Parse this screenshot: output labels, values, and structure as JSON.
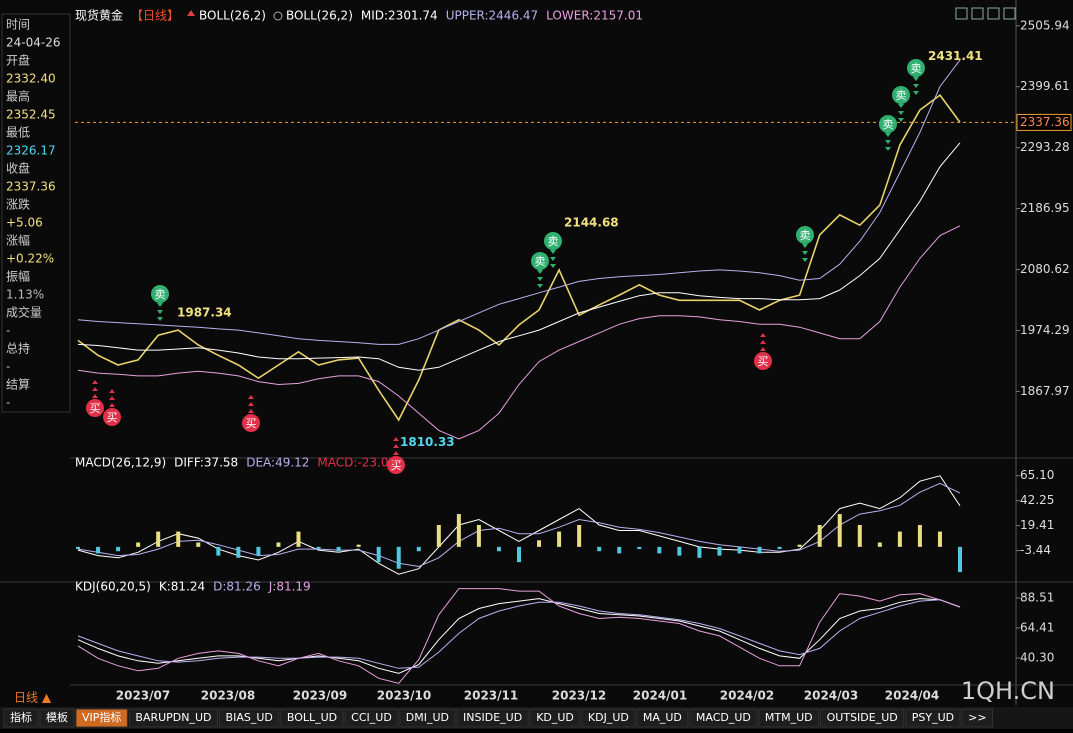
{
  "chart_data": [
    {
      "type": "line",
      "title": "现货黄金",
      "subtitle": "【日线】",
      "indicator": "BOLL(26,2)",
      "indicator_full": "BOLL(26,2)",
      "ylim": [
        1757,
        2537
      ],
      "yticks": [
        2505.94,
        2399.61,
        2293.28,
        2186.95,
        2080.62,
        1974.29,
        1867.97
      ],
      "xlabels": [
        "2023/07",
        "2023/08",
        "2023/09",
        "2023/10",
        "2023/11",
        "2023/12",
        "2024/01",
        "2024/02",
        "2024/03",
        "2024/04"
      ],
      "last_price": 2337.36,
      "last_price_color": "#f0a030",
      "annotations": [
        1987.34,
        2144.68,
        1810.33,
        2431.41
      ],
      "buy_label": "买",
      "sell_label": "卖",
      "series": [
        {
          "color": "#e8d36a",
          "values": [
            1957,
            1931,
            1914,
            1923,
            1966,
            1975,
            1949,
            1931,
            1914,
            1891,
            1914,
            1937,
            1914,
            1923,
            1926,
            1870,
            1818,
            1888,
            1975,
            1993,
            1975,
            1949,
            1984,
            2010,
            2080,
            2001,
            2019,
            2036,
            2054,
            2036,
            2027,
            2027,
            2027,
            2027,
            2010,
            2027,
            2036,
            2141,
            2176,
            2158,
            2193,
            2298,
            2359,
            2385,
            2337.36
          ]
        },
        {
          "name": "MID:2301.74",
          "color": "#ffffff",
          "values": [
            1950,
            1948,
            1944,
            1940,
            1940,
            1942,
            1944,
            1940,
            1935,
            1928,
            1925,
            1925,
            1926,
            1927,
            1928,
            1925,
            1910,
            1905,
            1910,
            1925,
            1940,
            1955,
            1965,
            1975,
            1990,
            2005,
            2015,
            2025,
            2035,
            2040,
            2040,
            2035,
            2032,
            2030,
            2030,
            2028,
            2028,
            2030,
            2045,
            2070,
            2100,
            2150,
            2200,
            2260,
            2301.74
          ]
        },
        {
          "name": "UPPER:2446.47",
          "color": "#b8b0f0",
          "values": [
            1993,
            1990,
            1988,
            1986,
            1984,
            1982,
            1980,
            1977,
            1975,
            1970,
            1965,
            1960,
            1957,
            1955,
            1953,
            1950,
            1950,
            1960,
            1975,
            1990,
            2005,
            2020,
            2030,
            2040,
            2050,
            2060,
            2065,
            2068,
            2070,
            2072,
            2075,
            2078,
            2080,
            2078,
            2075,
            2070,
            2062,
            2065,
            2090,
            2130,
            2180,
            2250,
            2320,
            2400,
            2446.47
          ]
        },
        {
          "name": "LOWER:2157.01",
          "color": "#e8a0e0",
          "values": [
            1905,
            1900,
            1898,
            1895,
            1895,
            1900,
            1903,
            1900,
            1895,
            1885,
            1880,
            1882,
            1890,
            1895,
            1895,
            1885,
            1860,
            1830,
            1800,
            1785,
            1800,
            1830,
            1880,
            1920,
            1940,
            1955,
            1970,
            1985,
            1995,
            2000,
            2000,
            1998,
            1993,
            1990,
            1985,
            1985,
            1980,
            1970,
            1960,
            1960,
            1990,
            2050,
            2100,
            2140,
            2157.01
          ]
        }
      ]
    },
    {
      "type": "combo",
      "title": "MACD(26,12,9)",
      "ylim": [
        -30.3,
        77.6
      ],
      "yticks": [
        {
          "value": 65.1,
          "label": "65.10"
        },
        42.25,
        19.41,
        -3.44
      ],
      "series": [
        {
          "name": "DIFF:37.58",
          "type": "line",
          "color": "#ffffff",
          "values": [
            -3,
            -8,
            -10,
            -5,
            5,
            12,
            8,
            -2,
            -8,
            -12,
            -5,
            5,
            -3,
            -5,
            -2,
            -15,
            -25,
            -20,
            0,
            20,
            25,
            15,
            5,
            15,
            25,
            35,
            20,
            15,
            15,
            10,
            5,
            0,
            -2,
            -3,
            -5,
            -5,
            -2,
            15,
            35,
            40,
            35,
            45,
            60,
            65,
            37.58
          ]
        },
        {
          "name": "DEA:49.12",
          "type": "line",
          "color": "#b8b0f0",
          "values": [
            -2,
            -5,
            -8,
            -7,
            -2,
            5,
            6,
            2,
            -3,
            -8,
            -7,
            -2,
            -2,
            -3,
            -3,
            -8,
            -15,
            -18,
            -10,
            5,
            15,
            17,
            12,
            12,
            18,
            25,
            22,
            18,
            16,
            13,
            9,
            5,
            2,
            0,
            -2,
            -4,
            -3,
            5,
            20,
            30,
            33,
            38,
            50,
            58,
            49.12
          ]
        },
        {
          "name": "MACD:-23.08",
          "type": "bar",
          "color": "#e0304a",
          "up_color": "#e8e080",
          "down_color": "#4fc8e0",
          "values": [
            -2,
            -6,
            -4,
            4,
            14,
            14,
            4,
            -8,
            -10,
            -8,
            4,
            14,
            -2,
            -4,
            2,
            -14,
            -20,
            -4,
            20,
            30,
            20,
            -4,
            -14,
            6,
            14,
            20,
            -4,
            -6,
            -2,
            -6,
            -8,
            -10,
            -8,
            -6,
            -6,
            -2,
            2,
            20,
            30,
            20,
            4,
            14,
            20,
            14,
            -23.08
          ]
        }
      ]
    },
    {
      "type": "combo",
      "title": "KDJ(60,20,5)",
      "ylim": [
        18.6,
        98.9
      ],
      "yticks": [
        88.51,
        64.41,
        {
          "value": 40.3,
          "label": "40.30"
        }
      ],
      "series": [
        {
          "name": "K:81.24",
          "type": "line",
          "color": "#ffffff",
          "values": [
            55,
            48,
            42,
            38,
            36,
            38,
            40,
            42,
            42,
            40,
            38,
            40,
            42,
            40,
            38,
            32,
            28,
            35,
            55,
            72,
            80,
            84,
            86,
            88,
            84,
            80,
            76,
            75,
            74,
            72,
            70,
            66,
            62,
            55,
            48,
            42,
            40,
            55,
            72,
            78,
            80,
            85,
            88,
            87,
            81.24
          ]
        },
        {
          "name": "D:81.26",
          "type": "line",
          "color": "#b8b0f0",
          "values": [
            58,
            52,
            46,
            42,
            38,
            37,
            38,
            40,
            41,
            41,
            40,
            40,
            41,
            41,
            40,
            36,
            32,
            33,
            45,
            60,
            72,
            78,
            82,
            85,
            85,
            82,
            78,
            76,
            75,
            73,
            71,
            68,
            64,
            58,
            52,
            46,
            43,
            48,
            62,
            72,
            77,
            82,
            86,
            87,
            81.26
          ]
        },
        {
          "name": "J:81.19",
          "type": "line",
          "color": "#e8a0e0",
          "values": [
            50,
            40,
            34,
            30,
            32,
            40,
            44,
            46,
            44,
            38,
            34,
            40,
            44,
            38,
            34,
            24,
            20,
            39,
            75,
            96,
            96,
            96,
            94,
            94,
            82,
            76,
            72,
            73,
            72,
            70,
            68,
            62,
            58,
            49,
            40,
            34,
            34,
            69,
            92,
            90,
            86,
            91,
            92,
            87,
            81.19
          ]
        }
      ]
    }
  ],
  "info": [
    {
      "label": "时间",
      "value": "24-04-26"
    },
    {
      "label": "开盘",
      "value": "2332.40"
    },
    {
      "label": "最高",
      "value": "2352.45"
    },
    {
      "label": "最低",
      "value": "2326.17"
    },
    {
      "label": "收盘",
      "value": "2337.36"
    },
    {
      "label": "涨跌",
      "value": "+5.06"
    },
    {
      "label": "涨幅",
      "value": "+0.22%"
    },
    {
      "label": "振幅",
      "value": "1.13%"
    },
    {
      "label": "成交量",
      "value": "-"
    },
    {
      "label": "总持",
      "value": "-"
    },
    {
      "label": "结算",
      "value": "-"
    }
  ],
  "period": "日线 ▲",
  "watermark": "1QH.CN",
  "tabs": [
    "指标",
    "模板",
    "VIP指标",
    "BARUPDN_UD",
    "BIAS_UD",
    "BOLL_UD",
    "CCI_UD",
    "DMI_UD",
    "INSIDE_UD",
    "KD_UD",
    "KDJ_UD",
    "MA_UD",
    "MACD_UD",
    "MTM_UD",
    "OUTSIDE_UD",
    "PSY_UD",
    ">>"
  ]
}
